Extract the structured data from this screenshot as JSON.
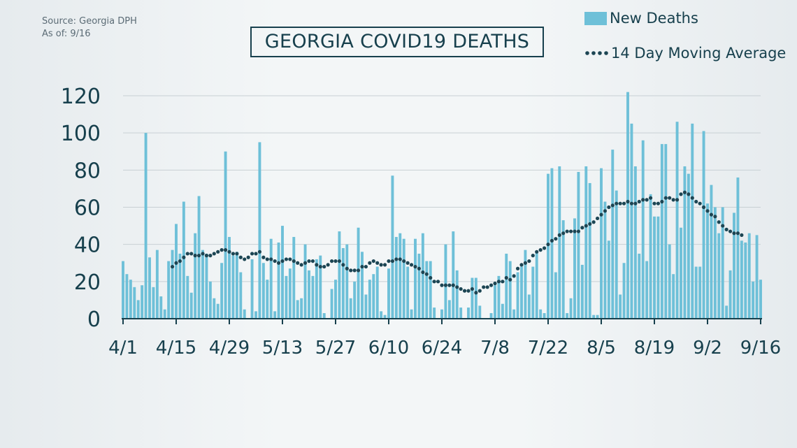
{
  "source_lines": [
    "Source: Georgia DPH",
    "As of: 9/16"
  ],
  "colors": {
    "bar": "#6ec0d8",
    "line": "#1c4553",
    "axis": "#17404d",
    "grid": "#c8d0d4"
  },
  "chart_data": {
    "type": "bar",
    "title": "GEORGIA COVID19 DEATHS",
    "xlabel": "",
    "ylabel": "",
    "x_tick_labels": [
      "4/1",
      "4/15",
      "4/29",
      "5/13",
      "5/27",
      "6/10",
      "6/24",
      "7/8",
      "7/22",
      "8/5",
      "8/19",
      "9/2",
      "9/16"
    ],
    "y_ticks": [
      0,
      20,
      40,
      60,
      80,
      100,
      120
    ],
    "ylim": [
      0,
      120
    ],
    "grid": true,
    "legend_position": "top-right",
    "series": [
      {
        "name": "New Deaths",
        "type": "bar",
        "start_date": "4/1",
        "values": [
          31,
          24,
          21,
          17,
          10,
          18,
          100,
          33,
          17,
          37,
          12,
          5,
          31,
          37,
          51,
          35,
          63,
          23,
          14,
          46,
          66,
          37,
          35,
          20,
          11,
          8,
          30,
          90,
          44,
          34,
          36,
          25,
          5,
          0,
          32,
          4,
          95,
          30,
          21,
          43,
          4,
          41,
          50,
          23,
          27,
          44,
          10,
          11,
          40,
          26,
          23,
          32,
          34,
          3,
          0,
          16,
          21,
          47,
          38,
          40,
          11,
          20,
          49,
          36,
          13,
          21,
          24,
          28,
          4,
          2,
          27,
          77,
          44,
          46,
          43,
          28,
          5,
          43,
          35,
          46,
          31,
          31,
          6,
          0,
          5,
          40,
          10,
          47,
          26,
          6,
          0,
          6,
          22,
          22,
          7,
          0,
          0,
          3,
          18,
          23,
          8,
          35,
          31,
          5,
          25,
          28,
          37,
          13,
          28,
          36,
          5,
          3,
          78,
          81,
          25,
          82,
          53,
          3,
          11,
          54,
          79,
          29,
          82,
          73,
          2,
          2,
          81,
          63,
          42,
          91,
          69,
          13,
          30,
          122,
          105,
          82,
          35,
          96,
          31,
          67,
          55,
          55,
          94,
          94,
          40,
          24,
          106,
          49,
          82,
          78,
          105,
          28,
          28,
          101,
          62,
          72,
          60,
          46,
          60,
          7,
          26,
          57,
          76,
          42,
          41,
          46,
          20,
          45,
          21
        ]
      },
      {
        "name": "14 Day Moving Average",
        "type": "line",
        "start_date": "4/14",
        "values": [
          28,
          30,
          31,
          33,
          35,
          35,
          34,
          34,
          35,
          34,
          34,
          35,
          36,
          37,
          37,
          36,
          35,
          35,
          33,
          32,
          33,
          35,
          35,
          36,
          33,
          32,
          32,
          31,
          30,
          31,
          32,
          32,
          31,
          30,
          29,
          30,
          31,
          31,
          29,
          28,
          28,
          29,
          31,
          31,
          31,
          29,
          27,
          26,
          26,
          26,
          28,
          28,
          30,
          31,
          30,
          29,
          29,
          31,
          31,
          32,
          32,
          31,
          30,
          29,
          28,
          27,
          25,
          24,
          22,
          20,
          20,
          18,
          18,
          18,
          18,
          17,
          16,
          15,
          15,
          16,
          14,
          15,
          17,
          17,
          18,
          19,
          20,
          20,
          22,
          21,
          23,
          27,
          29,
          30,
          31,
          34,
          36,
          37,
          38,
          40,
          42,
          43,
          45,
          46,
          47,
          47,
          47,
          47,
          49,
          50,
          51,
          52,
          54,
          56,
          58,
          60,
          61,
          62,
          62,
          62,
          63,
          62,
          62,
          63,
          64,
          64,
          65,
          62,
          62,
          63,
          65,
          65,
          64,
          64,
          67,
          68,
          67,
          65,
          63,
          62,
          60,
          58,
          56,
          55,
          52,
          50,
          48,
          47,
          46,
          46,
          45
        ]
      }
    ]
  }
}
